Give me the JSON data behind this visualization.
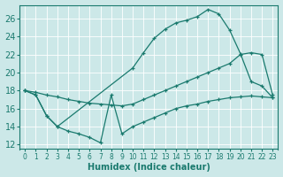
{
  "background_color": "#cce8e8",
  "grid_color": "#b0d0d0",
  "line_color": "#1a7a6e",
  "xlabel": "Humidex (Indice chaleur)",
  "xlim": [
    -0.5,
    23.5
  ],
  "ylim": [
    11.5,
    27.5
  ],
  "yticks": [
    12,
    14,
    16,
    18,
    20,
    22,
    24,
    26
  ],
  "xticks": [
    0,
    1,
    2,
    3,
    4,
    5,
    6,
    7,
    8,
    9,
    10,
    11,
    12,
    13,
    14,
    15,
    16,
    17,
    18,
    19,
    20,
    21,
    22,
    23
  ],
  "upper_x": [
    0,
    1,
    2,
    3,
    10,
    11,
    12,
    13,
    14,
    15,
    16,
    17,
    18,
    19,
    20,
    21,
    22,
    23
  ],
  "upper_y": [
    18.0,
    17.5,
    15.2,
    14.0,
    20.5,
    22.2,
    23.8,
    24.8,
    25.5,
    25.8,
    26.2,
    27.0,
    26.5,
    24.7,
    22.1,
    19.0,
    18.5,
    17.2
  ],
  "mid_x": [
    0,
    1,
    2,
    3,
    4,
    5,
    6,
    7,
    8,
    9,
    10,
    11,
    12,
    13,
    14,
    15,
    16,
    17,
    18,
    19,
    20,
    21,
    22,
    23
  ],
  "mid_y": [
    18.0,
    17.8,
    17.5,
    17.3,
    17.0,
    16.8,
    16.6,
    16.5,
    16.4,
    16.3,
    16.5,
    17.0,
    17.5,
    18.0,
    18.5,
    19.0,
    19.5,
    20.0,
    20.5,
    21.0,
    22.0,
    22.2,
    22.0,
    17.5
  ],
  "lower_x": [
    0,
    1,
    2,
    3,
    4,
    5,
    6,
    7,
    8,
    9,
    10,
    11,
    12,
    13,
    14,
    15,
    16,
    17,
    18,
    19,
    20,
    21,
    22,
    23
  ],
  "lower_y": [
    18.0,
    17.5,
    15.2,
    14.0,
    13.5,
    13.2,
    12.8,
    12.2,
    17.5,
    13.2,
    14.0,
    14.5,
    15.0,
    15.5,
    16.0,
    16.3,
    16.5,
    16.8,
    17.0,
    17.2,
    17.3,
    17.4,
    17.3,
    17.2
  ],
  "font_size_label": 7,
  "font_size_tick_x": 5.5,
  "font_size_tick_y": 7
}
